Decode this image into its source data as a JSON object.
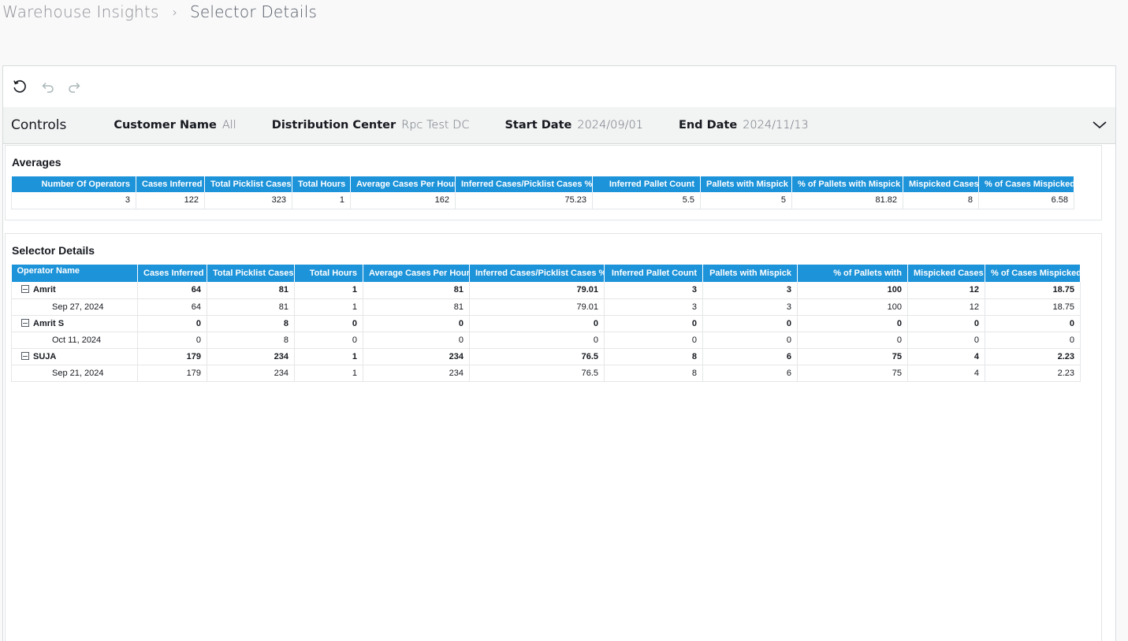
{
  "breadcrumb": {
    "parent": "Warehouse Insights",
    "separator": "›",
    "current": "Selector Details"
  },
  "toolbar": {
    "reset_icon": "reset-icon",
    "undo_icon": "undo-icon",
    "redo_icon": "redo-icon"
  },
  "controls": {
    "title": "Controls",
    "customer_name": {
      "label": "Customer Name",
      "value": "All"
    },
    "distribution_center": {
      "label": "Distribution Center",
      "value": "Rpc Test DC"
    },
    "start_date": {
      "label": "Start Date",
      "value": "2024/09/01"
    },
    "end_date": {
      "label": "End Date",
      "value": "2024/11/13"
    }
  },
  "averages": {
    "title": "Averages",
    "headers": [
      "Number Of Operators",
      "Cases Inferred",
      "Total Picklist Cases",
      "Total Hours",
      "Average Cases Per Hour",
      "Inferred Cases/Picklist Cases %",
      "Inferred Pallet Count",
      "Pallets with Mispick",
      "% of Pallets with Mispick",
      "Mispicked Cases",
      "% of Cases Mispicked"
    ],
    "row": [
      "3",
      "122",
      "323",
      "1",
      "162",
      "75.23",
      "5.5",
      "5",
      "81.82",
      "8",
      "6.58"
    ]
  },
  "selector": {
    "title": "Selector Details",
    "headers": [
      "Operator Name",
      "Cases Inferred",
      "Total Picklist Cases",
      "Total Hours",
      "Average Cases Per Hour",
      "Inferred Cases/Picklist Cases %",
      "Inferred Pallet Count",
      "Pallets with Mispick",
      "% of Pallets with",
      "Mispicked Cases",
      "% of Cases Mispicked"
    ],
    "rows": [
      {
        "type": "group",
        "cells": [
          "Amrit",
          "64",
          "81",
          "1",
          "81",
          "79.01",
          "3",
          "3",
          "100",
          "12",
          "18.75"
        ]
      },
      {
        "type": "child",
        "cells": [
          "Sep 27, 2024",
          "64",
          "81",
          "1",
          "81",
          "79.01",
          "3",
          "3",
          "100",
          "12",
          "18.75"
        ]
      },
      {
        "type": "group",
        "cells": [
          "Amrit S",
          "0",
          "8",
          "0",
          "0",
          "0",
          "0",
          "0",
          "0",
          "0",
          "0"
        ]
      },
      {
        "type": "child",
        "cells": [
          "Oct 11, 2024",
          "0",
          "8",
          "0",
          "0",
          "0",
          "0",
          "0",
          "0",
          "0",
          "0"
        ]
      },
      {
        "type": "group",
        "cells": [
          "SUJA",
          "179",
          "234",
          "1",
          "234",
          "76.5",
          "8",
          "6",
          "75",
          "4",
          "2.23"
        ]
      },
      {
        "type": "child",
        "cells": [
          "Sep 21, 2024",
          "179",
          "234",
          "1",
          "234",
          "76.5",
          "8",
          "6",
          "75",
          "4",
          "2.23"
        ]
      }
    ]
  },
  "colors": {
    "header_bg": "#1d93d9"
  }
}
